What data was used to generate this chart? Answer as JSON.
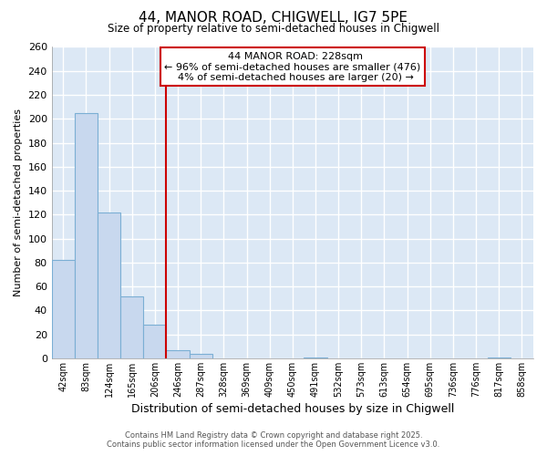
{
  "title1": "44, MANOR ROAD, CHIGWELL, IG7 5PE",
  "title2": "Size of property relative to semi-detached houses in Chigwell",
  "xlabel": "Distribution of semi-detached houses by size in Chigwell",
  "ylabel": "Number of semi-detached properties",
  "bar_labels": [
    "42sqm",
    "83sqm",
    "124sqm",
    "165sqm",
    "206sqm",
    "246sqm",
    "287sqm",
    "328sqm",
    "369sqm",
    "409sqm",
    "450sqm",
    "491sqm",
    "532sqm",
    "573sqm",
    "613sqm",
    "654sqm",
    "695sqm",
    "736sqm",
    "776sqm",
    "817sqm",
    "858sqm"
  ],
  "bar_values": [
    82,
    205,
    122,
    52,
    28,
    7,
    4,
    0,
    0,
    0,
    0,
    1,
    0,
    0,
    0,
    0,
    0,
    0,
    0,
    1,
    0
  ],
  "bar_color": "#c8d8ee",
  "bar_edge_color": "#7bafd4",
  "vline_color": "#cc0000",
  "ylim": [
    0,
    260
  ],
  "yticks": [
    0,
    20,
    40,
    60,
    80,
    100,
    120,
    140,
    160,
    180,
    200,
    220,
    240,
    260
  ],
  "annotation_title": "44 MANOR ROAD: 228sqm",
  "annotation_line1": "← 96% of semi-detached houses are smaller (476)",
  "annotation_line2": "4% of semi-detached houses are larger (20) →",
  "footer1": "Contains HM Land Registry data © Crown copyright and database right 2025.",
  "footer2": "Contains public sector information licensed under the Open Government Licence v3.0.",
  "plot_bg_color": "#dce8f5",
  "fig_bg_color": "#ffffff",
  "grid_color": "#ffffff",
  "vline_x_index": 4.5
}
